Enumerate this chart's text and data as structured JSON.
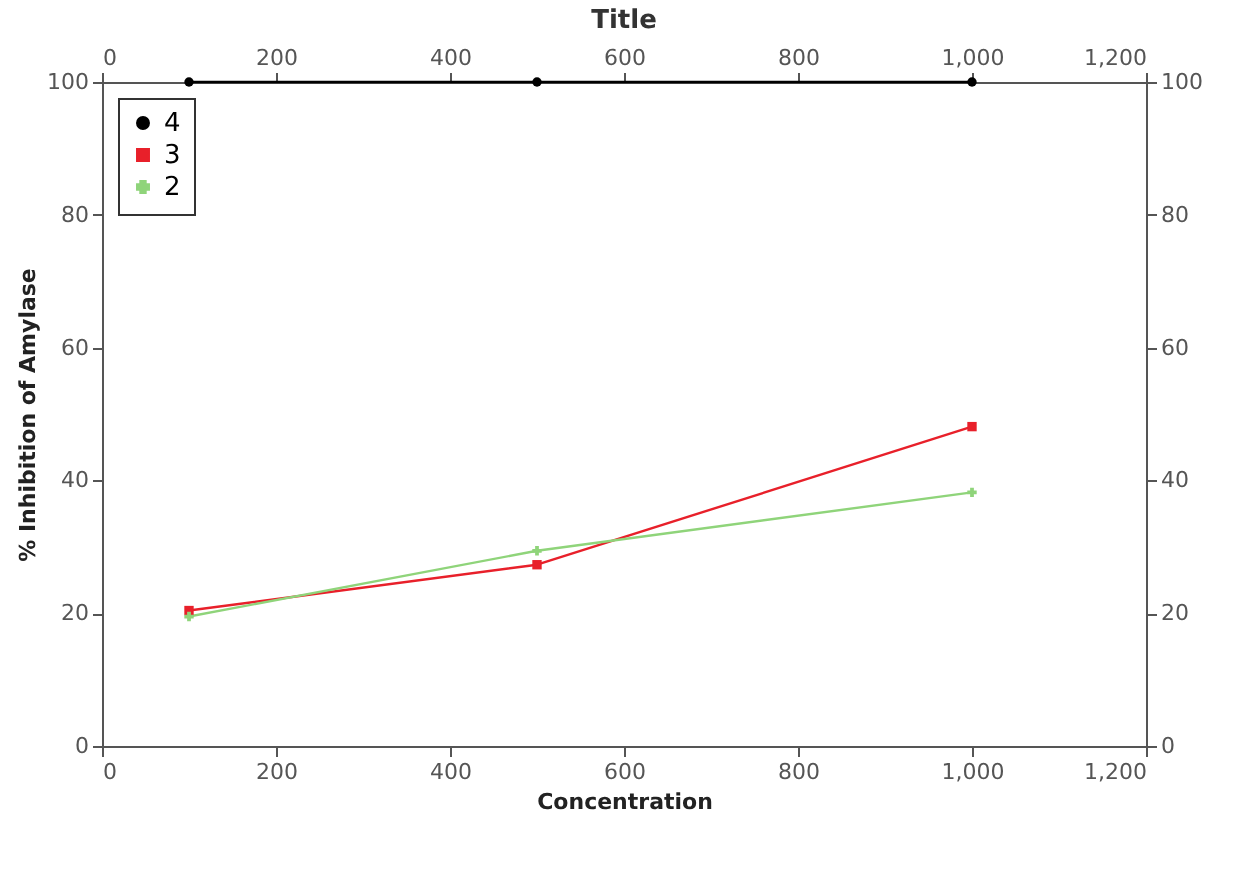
{
  "chart_data": {
    "type": "line",
    "title": "Title",
    "xlabel": "Concentration",
    "ylabel": "% Inhibition of Amylase",
    "x": [
      100,
      500,
      1000
    ],
    "series": [
      {
        "name": "4",
        "color": "#000000",
        "marker": "circle",
        "values": [
          100,
          100,
          100
        ]
      },
      {
        "name": "3",
        "color": "#e8202a",
        "marker": "square",
        "values": [
          20.4,
          27.3,
          48.1
        ]
      },
      {
        "name": "2",
        "color": "#8fd47a",
        "marker": "cross",
        "values": [
          19.5,
          29.4,
          38.2
        ]
      }
    ],
    "xlim": [
      0,
      1200
    ],
    "xticks": [
      0,
      200,
      400,
      600,
      800,
      {
        "value": 1000,
        "label": "1,000"
      },
      {
        "value": 1200,
        "label": "1,200"
      }
    ],
    "x2lim": [
      0,
      1200
    ],
    "x2ticks": [
      0,
      200,
      400,
      600,
      800,
      {
        "value": 1000,
        "label": "1,000"
      },
      {
        "value": 1200,
        "label": "1,200"
      }
    ],
    "ylim": [
      0,
      100
    ],
    "yticks": [
      0,
      20,
      40,
      60,
      80,
      100
    ],
    "y2lim": [
      0,
      100
    ],
    "y2ticks": [
      0,
      20,
      40,
      60,
      80,
      100
    ],
    "grid": false,
    "legend": "top left",
    "line_style": "solid"
  }
}
